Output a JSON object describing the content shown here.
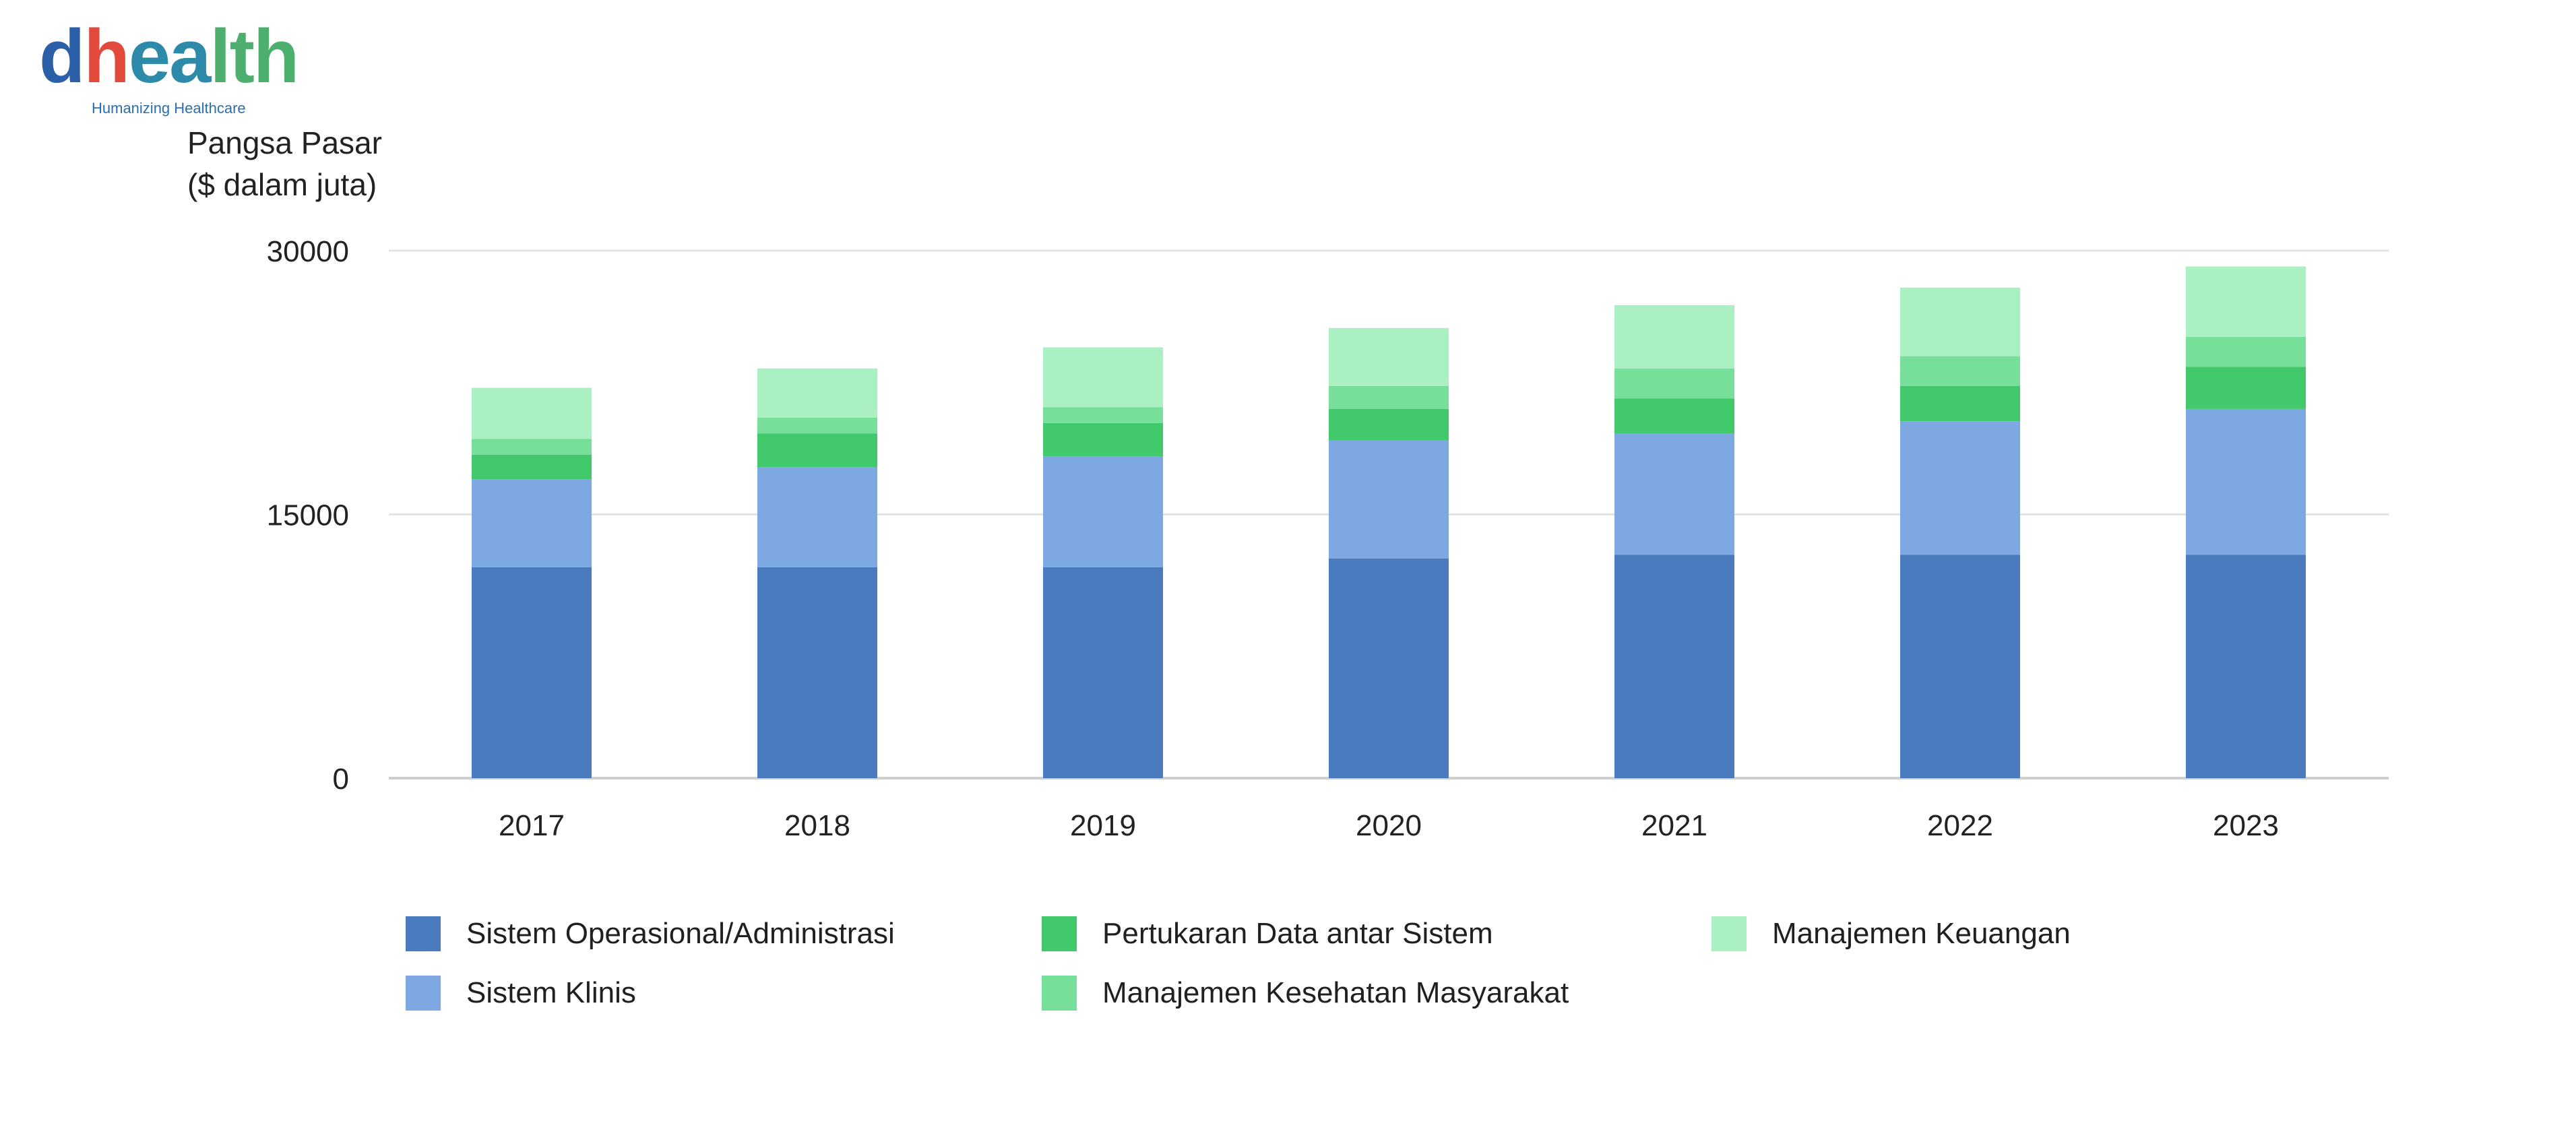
{
  "logo": {
    "wordmark": "dhealth",
    "tagline": "Humanizing Healthcare",
    "colors": [
      "#2b5fa8",
      "#e24a3b",
      "#4caf6d"
    ]
  },
  "chart_data": {
    "type": "bar",
    "stacked": true,
    "ylabel": "Pangsa Pasar\n($ dalam juta)",
    "ylim": [
      0,
      30000
    ],
    "yticks": [
      0,
      15000,
      30000
    ],
    "grid": true,
    "legend_position": "bottom",
    "categories": [
      "2017",
      "2018",
      "2019",
      "2020",
      "2021",
      "2022",
      "2023"
    ],
    "series": [
      {
        "name": "Sistem Operasional/Administrasi",
        "color": "#4a7bbf",
        "values": [
          12000,
          12000,
          12000,
          12500,
          12700,
          12700,
          12700
        ]
      },
      {
        "name": "Sistem Klinis",
        "color": "#7ea8e2",
        "values": [
          5000,
          5700,
          6300,
          6700,
          6900,
          7600,
          8300
        ]
      },
      {
        "name": "Pertukaran Data antar Sistem",
        "color": "#42c96b",
        "values": [
          1400,
          1900,
          1900,
          1800,
          2000,
          2000,
          2400
        ]
      },
      {
        "name": "Manajemen Kesehatan Masyarakat",
        "color": "#76e09a",
        "values": [
          900,
          900,
          900,
          1300,
          1700,
          1700,
          1700
        ]
      },
      {
        "name": "Manajemen Keuangan",
        "color": "#aaf0c2",
        "values": [
          2900,
          2800,
          3400,
          3300,
          3600,
          3900,
          4000
        ]
      }
    ]
  }
}
